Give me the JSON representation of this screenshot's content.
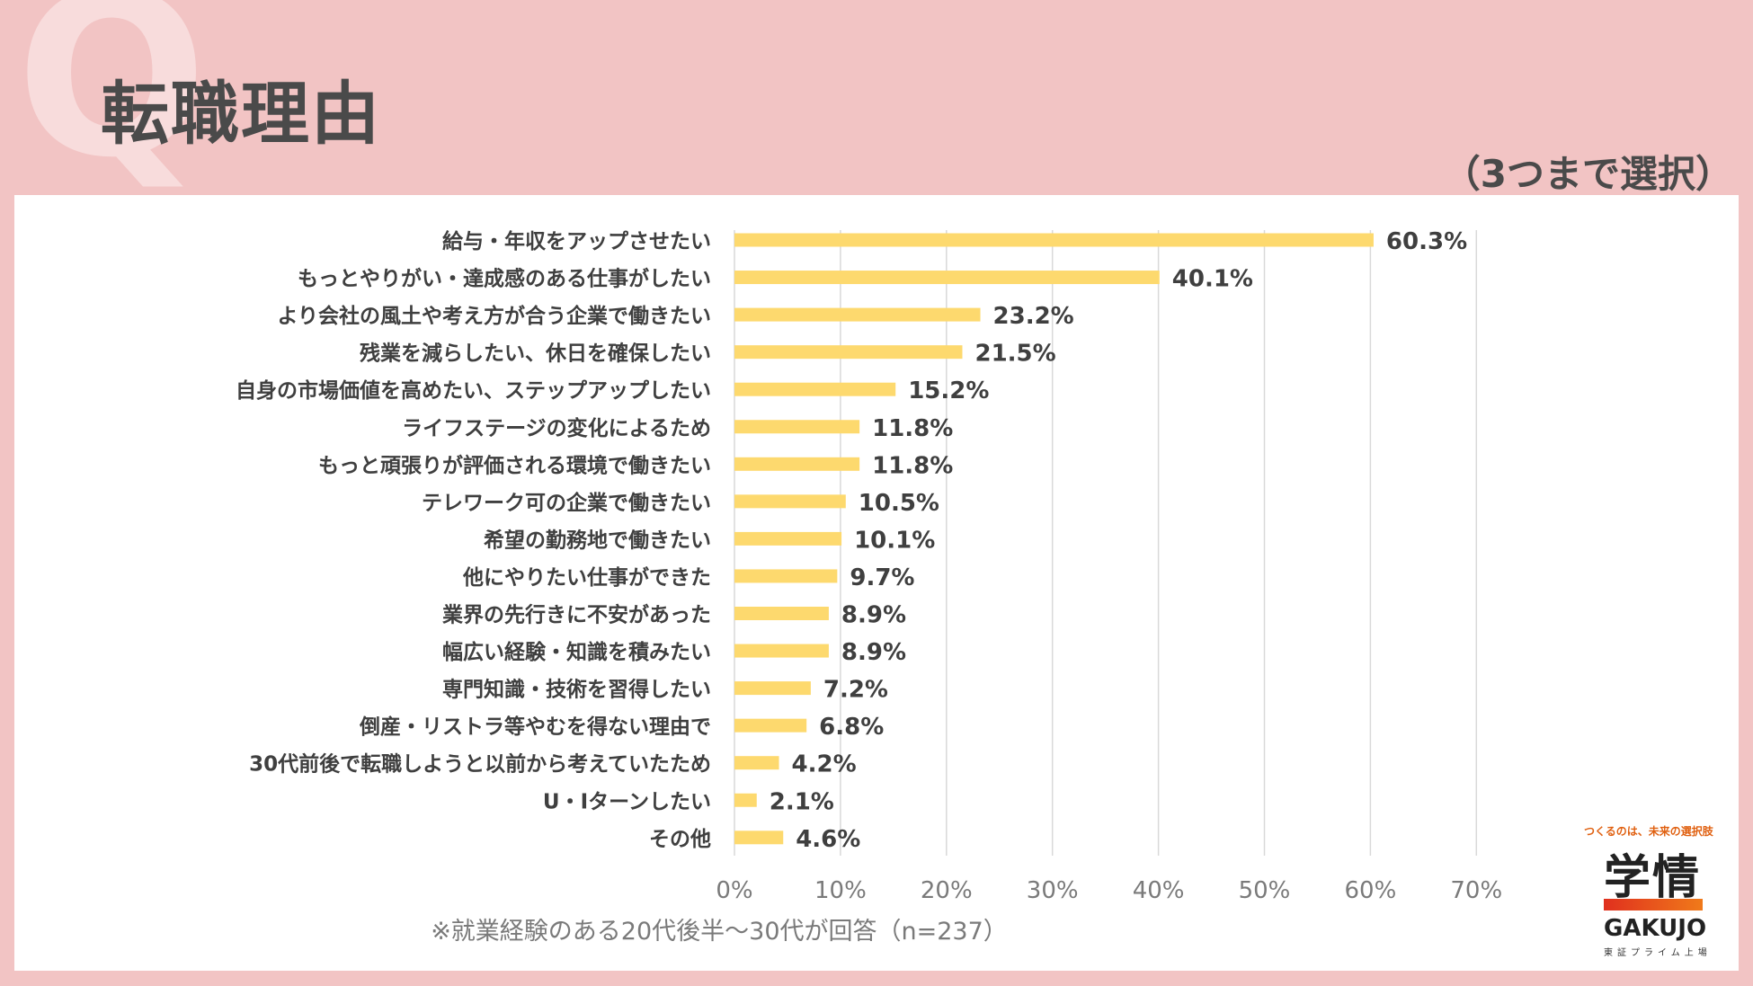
{
  "header": {
    "q_mark": "Q",
    "title": "転職理由",
    "subtitle": "（3つまで選択）"
  },
  "chart_data": {
    "type": "bar",
    "orientation": "horizontal",
    "categories": [
      "給与・年収をアップさせたい",
      "もっとやりがい・達成感のある仕事がしたい",
      "より会社の風土や考え方が合う企業で働きたい",
      "残業を減らしたい、休日を確保したい",
      "自身の市場価値を高めたい、ステップアップしたい",
      "ライフステージの変化によるため",
      "もっと頑張りが評価される環境で働きたい",
      "テレワーク可の企業で働きたい",
      "希望の勤務地で働きたい",
      "他にやりたい仕事ができた",
      "業界の先行きに不安があった",
      "幅広い経験・知識を積みたい",
      "専門知識・技術を習得したい",
      "倒産・リストラ等やむを得ない理由で",
      "30代前後で転職しようと以前から考えていたため",
      "U・Iターンしたい",
      "その他"
    ],
    "values": [
      60.3,
      40.1,
      23.2,
      21.5,
      15.2,
      11.8,
      11.8,
      10.5,
      10.1,
      9.7,
      8.9,
      8.9,
      7.2,
      6.8,
      4.2,
      2.1,
      4.6
    ],
    "data_labels": [
      "60.3%",
      "40.1%",
      "23.2%",
      "21.5%",
      "15.2%",
      "11.8%",
      "11.8%",
      "10.5%",
      "10.1%",
      "9.7%",
      "8.9%",
      "8.9%",
      "7.2%",
      "6.8%",
      "4.2%",
      "2.1%",
      "4.6%"
    ],
    "x_ticks": [
      "0%",
      "10%",
      "20%",
      "30%",
      "40%",
      "50%",
      "60%",
      "70%"
    ],
    "xlim": [
      0,
      70
    ],
    "grid": true,
    "bar_color": "#fdd96e"
  },
  "footnote": "※就業経験のある20代後半～30代が回答（n=237）",
  "logo": {
    "tagline": "つくるのは、未来の選択肢",
    "name_jp": "学情",
    "name_en": "GAKUJO",
    "sub": "東証プライム上場"
  }
}
